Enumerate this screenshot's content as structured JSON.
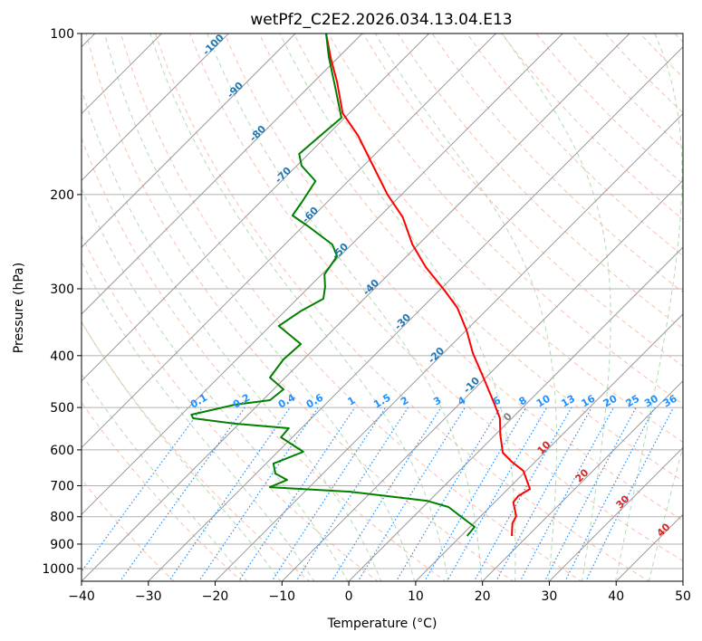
{
  "chart_data": {
    "type": "line",
    "subtype": "skew-t log-p",
    "title": "wetPf2_C2E2.2026.034.13.04.E13",
    "xlabel": "Temperature (°C)",
    "ylabel": "Pressure (hPa)",
    "xlim": [
      -40,
      50
    ],
    "ylim": [
      1056,
      100
    ],
    "x_ticks": [
      -40,
      -30,
      -20,
      -10,
      0,
      10,
      20,
      30,
      40,
      50
    ],
    "x_tick_labels": [
      "−40",
      "−30",
      "−20",
      "−10",
      "0",
      "10",
      "20",
      "30",
      "40",
      "50"
    ],
    "y_ticks": [
      100,
      200,
      300,
      400,
      500,
      600,
      700,
      800,
      900,
      1000
    ],
    "y_tick_labels": [
      "100",
      "200",
      "300",
      "400",
      "500",
      "600",
      "700",
      "800",
      "900",
      "1000"
    ],
    "grid": true,
    "colors": {
      "temperature": "#ff0000",
      "dewpoint": "#008000",
      "isotherm": "#999999",
      "dry_adiabat": "#f7a58a",
      "moist_adiabat": "#9fd29f",
      "mixing_ratio": "#1e90ff",
      "isotherm_label_cold": "#1f77b4",
      "isotherm_label_warm": "#d62728"
    },
    "series": [
      {
        "name": "Temperature",
        "pressure_hPa": [
          100,
          111.5,
          122.9,
          140.9,
          155.3,
          174.6,
          200,
          220.6,
          247.9,
          273.3,
          301.2,
          325.6,
          359,
          395.7,
          444.6,
          490,
          523.6,
          561.8,
          607.4,
          631.6,
          656.9,
          710,
          732,
          752,
          797.9,
          823,
          869
        ],
        "temperature_C": [
          -85.4,
          -80.9,
          -76.6,
          -71.0,
          -65.3,
          -59.2,
          -52.1,
          -46.4,
          -40.9,
          -35.5,
          -29.4,
          -24.7,
          -19.9,
          -15.6,
          -9.8,
          -5.0,
          -1.8,
          0.7,
          3.8,
          6.5,
          9.6,
          13.3,
          12.6,
          12.8,
          15.3,
          15.8,
          17.6
        ]
      },
      {
        "name": "Dewpoint",
        "pressure_hPa": [
          100,
          110.6,
          126.3,
          143.7,
          153.5,
          167.9,
          176.6,
          188.7,
          206.4,
          218.8,
          229.3,
          247.9,
          260.8,
          281.9,
          297.7,
          313.2,
          329.5,
          352,
          380.5,
          406.5,
          439.5,
          462.4,
          484.5,
          494,
          515.7,
          523.7,
          536.1,
          546.6,
          568.4,
          604.9,
          636.6,
          664.5,
          682.9,
          704.5,
          718.4,
          746.9,
          767.4,
          836,
          869
        ],
        "temperature_C": [
          -85.4,
          -81.5,
          -75.9,
          -70.5,
          -70.9,
          -71.4,
          -69.3,
          -64.9,
          -63.8,
          -63.2,
          -59.2,
          -52.9,
          -50.4,
          -49.6,
          -47.6,
          -46.1,
          -47.6,
          -48.7,
          -42.7,
          -43.0,
          -42.3,
          -38.5,
          -38.9,
          -43.5,
          -48.5,
          -47.7,
          -40.5,
          -31.9,
          -31.7,
          -26.2,
          -28.9,
          -27.1,
          -24.4,
          -25.9,
          -13.2,
          -0.4,
          3.8,
          10.7,
          10.9
        ]
      }
    ],
    "isotherm_labels": [
      "-100",
      "-90",
      "-80",
      "-70",
      "-60",
      "-50",
      "-40",
      "-30",
      "-20",
      "-10",
      "0",
      "10",
      "20",
      "30",
      "40"
    ],
    "mixing_ratio_labels": [
      "0.1",
      "0.2",
      "0.4",
      "0.6",
      "1",
      "1.5",
      "2",
      "3",
      "4",
      "6",
      "8",
      "10",
      "13",
      "16",
      "20",
      "25",
      "30",
      "36"
    ]
  }
}
